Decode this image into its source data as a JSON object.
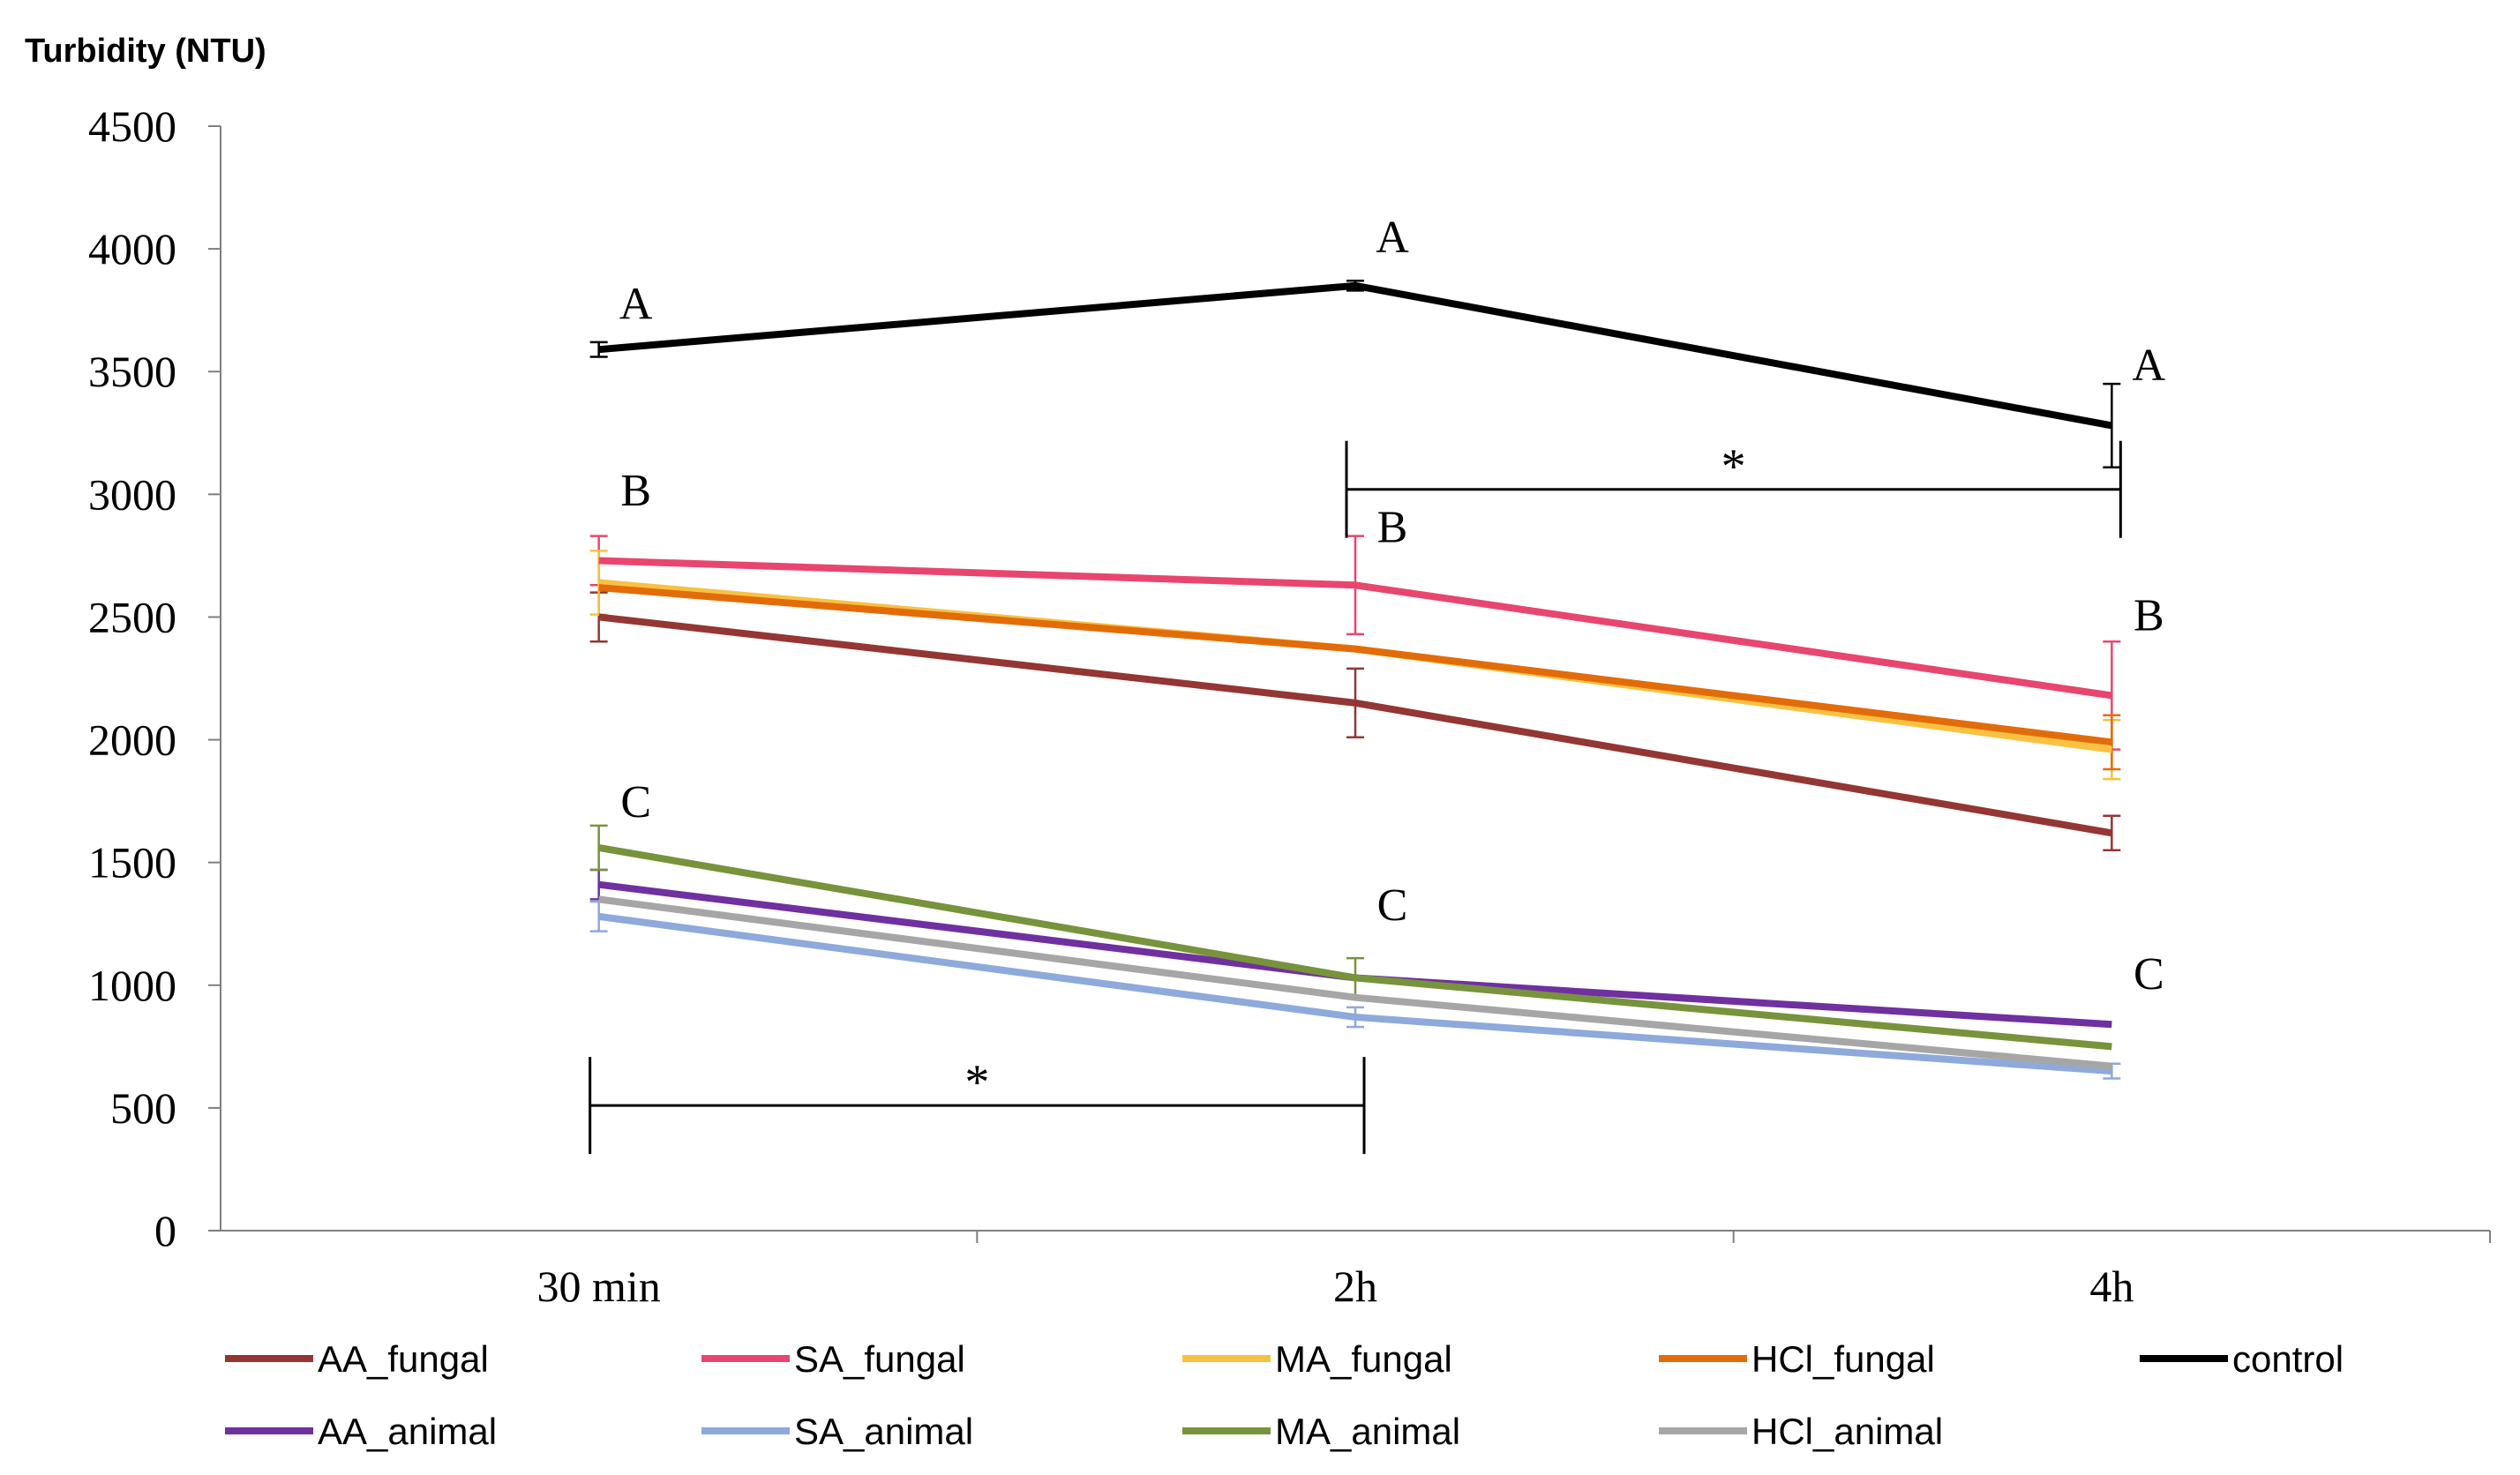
{
  "chart_data": {
    "type": "line",
    "ylabel": "Turbidity (NTU)",
    "xlabel": "",
    "categories": [
      "30 min",
      "2h",
      "4h"
    ],
    "ylim": [
      0,
      4500
    ],
    "yticks": [
      0,
      500,
      1000,
      1500,
      2000,
      2500,
      3000,
      3500,
      4000,
      4500
    ],
    "grid": false,
    "legend_position": "bottom",
    "series": [
      {
        "name": "AA_fungal",
        "color": "#943634",
        "values": [
          2500,
          2150,
          1620
        ],
        "errors": [
          100,
          140,
          70
        ]
      },
      {
        "name": "SA_fungal",
        "color": "#E8466E",
        "values": [
          2730,
          2630,
          2180
        ],
        "errors": [
          100,
          200,
          220
        ]
      },
      {
        "name": "MA_fungal",
        "color": "#F9C142",
        "values": [
          2640,
          2370,
          1960
        ],
        "errors": [
          130,
          0,
          120
        ]
      },
      {
        "name": "HCl_fungal",
        "color": "#E36C0A",
        "values": [
          2620,
          2370,
          1990
        ],
        "errors": [
          0,
          0,
          110
        ]
      },
      {
        "name": "control",
        "color": "#000000",
        "values": [
          3590,
          3850,
          3280
        ],
        "errors": [
          30,
          20,
          170
        ]
      },
      {
        "name": "AA_animal",
        "color": "#7030A0",
        "values": [
          1410,
          1030,
          840
        ],
        "errors": [
          60,
          0,
          0
        ]
      },
      {
        "name": "SA_animal",
        "color": "#8EA9DB",
        "values": [
          1280,
          870,
          650
        ],
        "errors": [
          60,
          40,
          30
        ]
      },
      {
        "name": "MA_animal",
        "color": "#77933C",
        "values": [
          1560,
          1030,
          750
        ],
        "errors": [
          90,
          80,
          0
        ]
      },
      {
        "name": "HCl_animal",
        "color": "#A6A6A6",
        "values": [
          1350,
          950,
          670
        ],
        "errors": [
          0,
          0,
          0
        ]
      }
    ],
    "annotations": [
      {
        "text": "A",
        "x": "30 min",
        "y": 3780
      },
      {
        "text": "A",
        "x": "2h",
        "y": 4050
      },
      {
        "text": "A",
        "x": "4h",
        "y": 3530
      },
      {
        "text": "B",
        "x": "30 min",
        "y": 3020
      },
      {
        "text": "B",
        "x": "2h",
        "y": 2870
      },
      {
        "text": "B",
        "x": "4h",
        "y": 2510
      },
      {
        "text": "C",
        "x": "30 min",
        "y": 1750
      },
      {
        "text": "C",
        "x": "2h",
        "y": 1330
      },
      {
        "text": "C",
        "x": "4h",
        "y": 1050
      }
    ],
    "brackets": [
      {
        "label": "*",
        "from": "2h",
        "to": "4h",
        "y": 3020
      },
      {
        "label": "*",
        "from": "30 min",
        "to": "2h",
        "y": 510
      }
    ]
  }
}
